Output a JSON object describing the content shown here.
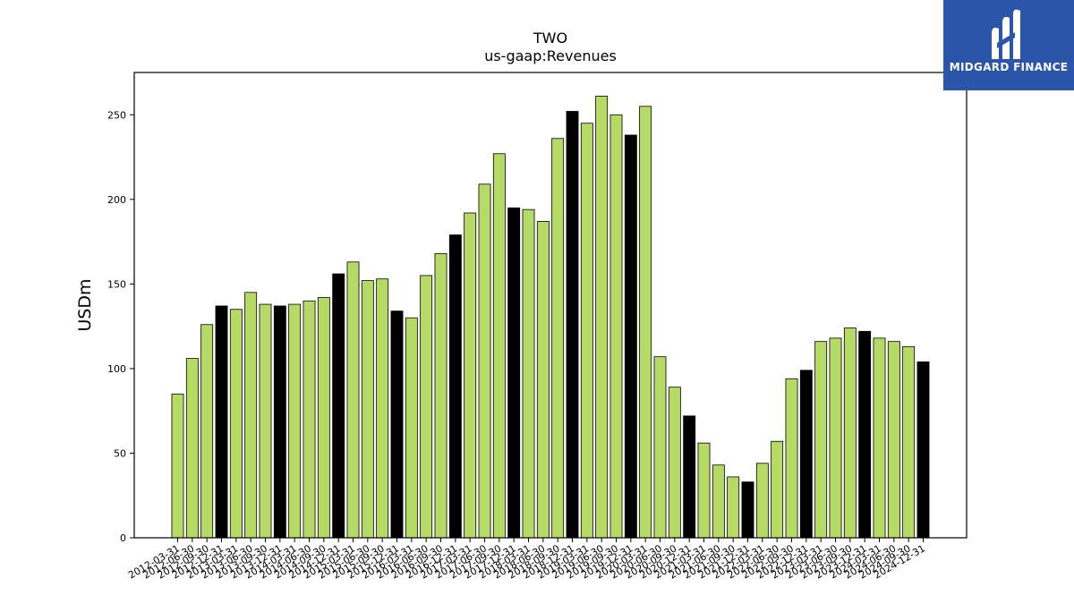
{
  "chart_data": {
    "type": "bar",
    "title": "TWO",
    "subtitle": "us-gaap:Revenues",
    "xlabel": "",
    "ylabel": "USDm",
    "ylim": [
      0,
      275
    ],
    "yticks": [
      0,
      50,
      100,
      150,
      200,
      250
    ],
    "grid": false,
    "legend": "none",
    "colors": {
      "quarter": "#b5db66",
      "fiscal_year_end": "#000000",
      "edge": "#000000"
    },
    "categories": [
      "2012-03-31",
      "2012-06-30",
      "2012-09-30",
      "2012-12-31",
      "2013-03-31",
      "2013-06-30",
      "2013-09-30",
      "2013-12-31",
      "2014-03-31",
      "2014-06-30",
      "2014-09-30",
      "2014-12-31",
      "2015-03-31",
      "2015-06-30",
      "2015-09-30",
      "2015-12-31",
      "2016-03-31",
      "2016-06-30",
      "2016-09-30",
      "2016-12-31",
      "2017-03-31",
      "2017-06-30",
      "2017-09-30",
      "2017-12-31",
      "2018-03-31",
      "2018-06-30",
      "2018-09-30",
      "2018-12-31",
      "2019-03-31",
      "2019-06-30",
      "2019-09-30",
      "2019-12-31",
      "2020-03-31",
      "2020-06-30",
      "2020-09-30",
      "2020-12-31",
      "2021-03-31",
      "2021-06-30",
      "2021-09-30",
      "2021-12-31",
      "2022-03-31",
      "2022-06-30",
      "2022-09-30",
      "2022-12-31",
      "2023-03-31",
      "2023-06-30",
      "2023-09-30",
      "2023-12-31",
      "2024-03-31",
      "2024-06-30",
      "2024-09-30",
      "2024-12-31"
    ],
    "values": [
      85,
      106,
      126,
      137,
      135,
      145,
      138,
      137,
      138,
      140,
      142,
      156,
      163,
      152,
      153,
      134,
      130,
      155,
      168,
      179,
      192,
      209,
      227,
      195,
      194,
      187,
      236,
      252,
      245,
      261,
      250,
      238,
      255,
      107,
      89,
      72,
      56,
      43,
      36,
      33,
      44,
      57,
      94,
      99,
      116,
      118,
      124,
      122,
      118,
      116,
      113,
      104
    ],
    "highlight": [
      false,
      false,
      false,
      true,
      false,
      false,
      false,
      true,
      false,
      false,
      false,
      true,
      false,
      false,
      false,
      true,
      false,
      false,
      false,
      true,
      false,
      false,
      false,
      true,
      false,
      false,
      false,
      true,
      false,
      false,
      false,
      true,
      false,
      false,
      false,
      true,
      false,
      false,
      false,
      true,
      false,
      false,
      false,
      true,
      false,
      false,
      false,
      true,
      false,
      false,
      false,
      true
    ]
  },
  "logo": {
    "text": "MIDGARD FINANCE",
    "icon": "midgard-logo-icon",
    "color": "#2a55a8"
  }
}
